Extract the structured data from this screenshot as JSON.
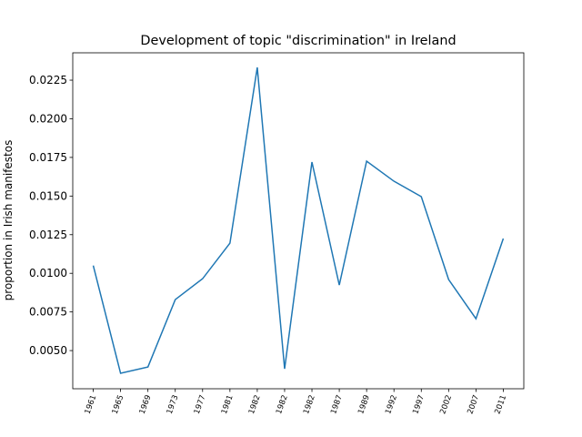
{
  "chart_data": {
    "type": "line",
    "title": "Development of topic \"discrimination\" in Ireland",
    "y_label": "proportion in Irish manifestos",
    "categories": [
      "1961",
      "1965",
      "1969",
      "1973",
      "1977",
      "1981",
      "1982",
      "1982",
      "1982",
      "1987",
      "1989",
      "1992",
      "1997",
      "2002",
      "2007",
      "2011"
    ],
    "series": [
      {
        "name": "discrimination",
        "color": "#1f77b4",
        "values": [
          0.0105,
          0.00353,
          0.00394,
          0.0083,
          0.00965,
          0.01195,
          0.02332,
          0.00382,
          0.0172,
          0.00924,
          0.01726,
          0.01596,
          0.01496,
          0.0096,
          0.00706,
          0.01225
        ]
      }
    ],
    "ylim": [
      0.00253,
      0.02427
    ],
    "yticks": [
      {
        "value": 0.005,
        "label": "0.0050"
      },
      0.0075,
      {
        "value": 0.01,
        "label": "0.0100"
      },
      0.0125,
      {
        "value": 0.015,
        "label": "0.0150"
      },
      0.0175,
      {
        "value": 0.02,
        "label": "0.0200"
      },
      0.0225
    ],
    "grid": false
  }
}
